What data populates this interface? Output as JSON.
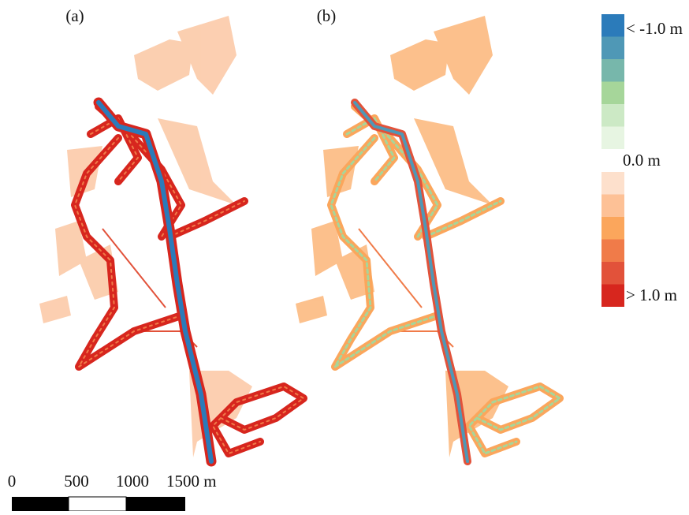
{
  "panels": [
    {
      "label": "(a)"
    },
    {
      "label": "(b)"
    }
  ],
  "legend": {
    "labels": {
      "top": "< -1.0 m",
      "middle": "0.0 m",
      "bottom": "> 1.0 m"
    },
    "negative_colors": [
      "#2b7bba",
      "#4f98b6",
      "#77b7ab",
      "#a6d69a",
      "#cce9c5",
      "#e7f5e2"
    ],
    "positive_colors": [
      "#fde0cc",
      "#fdc196",
      "#fba65c",
      "#f07b49",
      "#e2523a",
      "#d7261e"
    ]
  },
  "scale_bar": {
    "labels": [
      "0",
      "500",
      "1000",
      "1500 m"
    ]
  }
}
